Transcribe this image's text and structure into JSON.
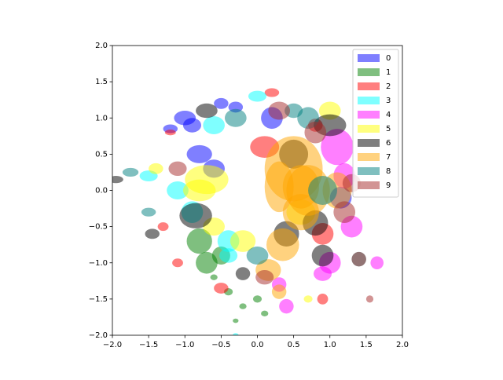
{
  "chart_data": {
    "type": "ellipse",
    "xlim": [
      -2,
      2
    ],
    "ylim": [
      -2,
      2
    ],
    "xticks": [
      {
        "value": -2,
        "label": "−2.0"
      },
      {
        "value": -1.5,
        "label": "−1.5"
      },
      {
        "value": -1,
        "label": "−1.0"
      },
      {
        "value": -0.5,
        "label": "−0.5"
      },
      {
        "value": 0,
        "label": "0.0"
      },
      0.5,
      {
        "value": 1,
        "label": "1.0"
      },
      1.5,
      {
        "value": 2,
        "label": "2.0"
      }
    ],
    "yticks": [
      {
        "value": -2,
        "label": "−2.0"
      },
      {
        "value": -1.5,
        "label": "−1.5"
      },
      {
        "value": -1,
        "label": "−1.0"
      },
      {
        "value": -0.5,
        "label": "−0.5"
      },
      {
        "value": 0,
        "label": "0.0"
      },
      0.5,
      {
        "value": 1,
        "label": "1.0"
      },
      1.5,
      {
        "value": 2,
        "label": "2.0"
      }
    ],
    "legend": "upper right",
    "alpha": 0.5,
    "series": [
      {
        "name": "0",
        "color": "blue",
        "x": [
          -1.0,
          -0.8,
          -0.5,
          0.2,
          1.15,
          -0.9,
          -0.6,
          -1.2,
          -0.3
        ],
        "values": [
          1.0,
          0.5,
          1.2,
          1.0,
          -0.1,
          0.9,
          0.3,
          0.85,
          1.15
        ],
        "widths": [
          0.3,
          0.35,
          0.2,
          0.3,
          0.3,
          0.25,
          0.3,
          0.2,
          0.2
        ],
        "heights": [
          0.2,
          0.25,
          0.15,
          0.3,
          0.3,
          0.2,
          0.25,
          0.12,
          0.15
        ]
      },
      {
        "name": "1",
        "color": "green",
        "x": [
          -0.8,
          -0.4,
          -0.2,
          0.0,
          -0.6,
          -0.3,
          0.1,
          -0.7,
          -0.5
        ],
        "values": [
          -0.7,
          -1.4,
          -1.6,
          -1.5,
          -1.2,
          -1.8,
          -1.7,
          -1.0,
          -0.9
        ],
        "widths": [
          0.35,
          0.12,
          0.1,
          0.12,
          0.1,
          0.08,
          0.1,
          0.3,
          0.25
        ],
        "heights": [
          0.35,
          0.1,
          0.08,
          0.1,
          0.08,
          0.06,
          0.08,
          0.3,
          0.25
        ]
      },
      {
        "name": "2",
        "color": "red",
        "x": [
          0.1,
          0.2,
          0.9,
          -1.3,
          -1.1,
          0.8,
          0.9,
          -0.5,
          -1.2
        ],
        "values": [
          0.6,
          1.35,
          -0.6,
          -0.5,
          -1.0,
          0.9,
          -1.5,
          -1.35,
          0.8
        ],
        "widths": [
          0.4,
          0.2,
          0.3,
          0.15,
          0.15,
          0.2,
          0.15,
          0.2,
          0.15
        ],
        "heights": [
          0.3,
          0.12,
          0.3,
          0.12,
          0.12,
          0.18,
          0.15,
          0.15,
          0.08
        ]
      },
      {
        "name": "3",
        "color": "cyan",
        "x": [
          -1.5,
          -0.9,
          -0.4,
          0.0,
          -1.1,
          -0.3,
          -0.4,
          -0.6
        ],
        "values": [
          0.2,
          -0.3,
          -0.7,
          1.3,
          0.0,
          -2.0,
          -0.9,
          0.9
        ],
        "widths": [
          0.25,
          0.3,
          0.3,
          0.25,
          0.3,
          0.08,
          0.25,
          0.3
        ],
        "heights": [
          0.15,
          0.3,
          0.3,
          0.15,
          0.25,
          0.06,
          0.2,
          0.25
        ]
      },
      {
        "name": "4",
        "color": "magenta",
        "x": [
          1.1,
          1.2,
          1.0,
          1.65,
          0.4,
          0.9,
          1.3,
          0.3
        ],
        "values": [
          0.6,
          0.2,
          -1.0,
          -1.0,
          -1.6,
          -1.15,
          -0.5,
          -1.3
        ],
        "widths": [
          0.45,
          0.3,
          0.3,
          0.18,
          0.2,
          0.25,
          0.3,
          0.2
        ],
        "heights": [
          0.5,
          0.35,
          0.3,
          0.18,
          0.2,
          0.2,
          0.3,
          0.2
        ]
      },
      {
        "name": "5",
        "color": "yellow",
        "x": [
          -0.8,
          -0.7,
          -0.2,
          1.0,
          0.6,
          -1.4,
          0.7,
          -0.6
        ],
        "values": [
          0.0,
          0.15,
          -0.7,
          1.1,
          -0.3,
          0.3,
          -1.5,
          -0.5
        ],
        "widths": [
          0.45,
          0.6,
          0.35,
          0.3,
          0.4,
          0.2,
          0.12,
          0.3
        ],
        "heights": [
          0.3,
          0.4,
          0.3,
          0.25,
          0.35,
          0.15,
          0.1,
          0.25
        ]
      },
      {
        "name": "6",
        "color": "black",
        "x": [
          1.0,
          0.5,
          -0.85,
          -1.45,
          -1.95,
          -0.2,
          0.8,
          0.4,
          0.9,
          -0.7
        ],
        "values": [
          0.9,
          0.5,
          -0.35,
          -0.6,
          0.15,
          -1.15,
          -0.45,
          -0.6,
          -0.9,
          1.1
        ],
        "widths": [
          0.45,
          0.4,
          0.45,
          0.2,
          0.2,
          0.2,
          0.35,
          0.35,
          0.3,
          0.3
        ],
        "heights": [
          0.3,
          0.4,
          0.35,
          0.14,
          0.1,
          0.18,
          0.35,
          0.35,
          0.3,
          0.2
        ]
      },
      {
        "name": "7",
        "color": "orange",
        "x": [
          0.5,
          0.7,
          0.6,
          0.35,
          0.15,
          1.1,
          0.3,
          0.6,
          0.3
        ],
        "values": [
          0.3,
          0.0,
          -0.3,
          -0.75,
          -1.1,
          0.0,
          -1.4,
          0.05,
          0.05
        ],
        "widths": [
          0.8,
          0.6,
          0.5,
          0.45,
          0.35,
          0.4,
          0.2,
          0.5,
          0.4
        ],
        "heights": [
          0.9,
          0.7,
          0.5,
          0.45,
          0.3,
          0.5,
          0.2,
          0.6,
          0.7
        ]
      },
      {
        "name": "8",
        "color": "teal",
        "x": [
          -1.75,
          -1.5,
          0.9,
          0.0,
          0.7,
          0.5,
          -0.3,
          1.4
        ],
        "values": [
          0.25,
          -0.3,
          0.0,
          -0.9,
          1.0,
          1.1,
          1.0,
          -0.95
        ],
        "widths": [
          0.22,
          0.2,
          0.4,
          0.3,
          0.3,
          0.25,
          0.3,
          0.2
        ],
        "heights": [
          0.12,
          0.12,
          0.4,
          0.25,
          0.3,
          0.2,
          0.25,
          0.2
        ]
      },
      {
        "name": "9",
        "color": "brown",
        "x": [
          1.55,
          1.4,
          1.2,
          0.3,
          0.8,
          0.1,
          -1.1,
          1.3
        ],
        "values": [
          -1.5,
          -0.95,
          -0.3,
          1.1,
          0.8,
          -1.2,
          0.3,
          0.1
        ],
        "widths": [
          0.1,
          0.2,
          0.3,
          0.3,
          0.3,
          0.25,
          0.25,
          0.25
        ],
        "heights": [
          0.1,
          0.2,
          0.3,
          0.25,
          0.3,
          0.2,
          0.2,
          0.25
        ]
      }
    ]
  }
}
